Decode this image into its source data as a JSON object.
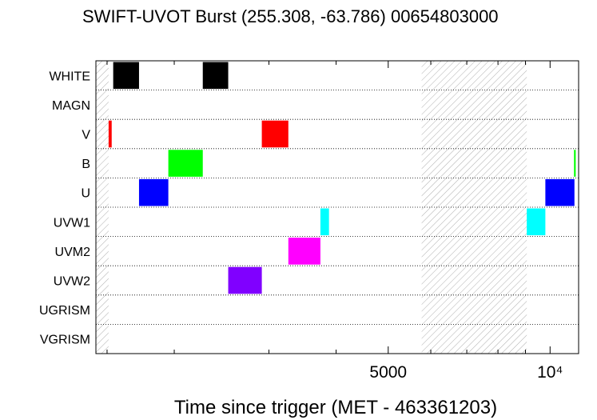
{
  "chart_data": {
    "type": "timeline",
    "title": "SWIFT-UVOT Burst (255.308, -63.786) 00654803000",
    "xlabel": "Time since trigger (MET - 463361203)",
    "ylabel": "",
    "x_scale": "log",
    "xlim": [
      1430,
      11300
    ],
    "grid": "horizontal-dotted",
    "categories": [
      "WHITE",
      "MAGN",
      "V",
      "B",
      "U",
      "UVW1",
      "UVM2",
      "UVW2",
      "UGRISM",
      "VGRISM"
    ],
    "x_tick_labels": [
      {
        "value": 5000,
        "label": "5000"
      },
      {
        "value": 10000,
        "label": "10⁴"
      }
    ],
    "minor_ticks": [
      1500,
      2000,
      3000,
      4000,
      5000,
      6000,
      7000,
      8000,
      9000,
      10000
    ],
    "hatched_regions": [
      {
        "start": 1430,
        "end": 1510
      },
      {
        "start": 5770,
        "end": 9050
      }
    ],
    "exposures": [
      {
        "filter": "WHITE",
        "start": 1540,
        "end": 1720,
        "color": "#000000"
      },
      {
        "filter": "WHITE",
        "start": 2260,
        "end": 2520,
        "color": "#000000"
      },
      {
        "filter": "V",
        "start": 1510,
        "end": 1530,
        "color": "#ff0000"
      },
      {
        "filter": "V",
        "start": 2910,
        "end": 3260,
        "color": "#ff0000"
      },
      {
        "filter": "B",
        "start": 1950,
        "end": 2260,
        "color": "#00ff00"
      },
      {
        "filter": "B",
        "start": 11080,
        "end": 11160,
        "color": "#00ff00"
      },
      {
        "filter": "U",
        "start": 1720,
        "end": 1950,
        "color": "#0000ff"
      },
      {
        "filter": "U",
        "start": 9800,
        "end": 11100,
        "color": "#0000ff"
      },
      {
        "filter": "UVW1",
        "start": 3740,
        "end": 3880,
        "color": "#00ffff"
      },
      {
        "filter": "UVW1",
        "start": 9050,
        "end": 9800,
        "color": "#00ffff"
      },
      {
        "filter": "UVM2",
        "start": 3260,
        "end": 3740,
        "color": "#ff00ff"
      },
      {
        "filter": "UVW2",
        "start": 2520,
        "end": 2910,
        "color": "#8000ff"
      }
    ]
  }
}
